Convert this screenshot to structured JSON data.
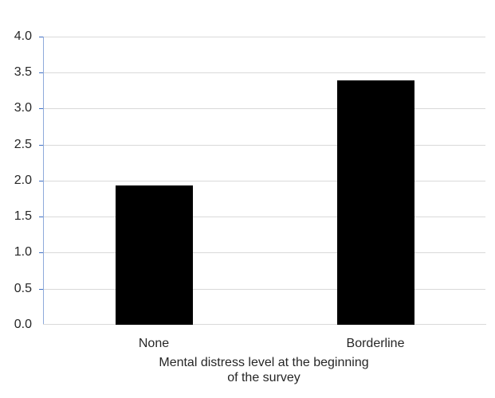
{
  "chart_data": {
    "type": "bar",
    "title": "",
    "categories": [
      "None",
      "Borderline"
    ],
    "values": [
      1.93,
      3.39
    ],
    "xlabel": "Mental distress level at the beginning of the survey",
    "xlabel_lines": [
      "Mental distress level at the beginning",
      "of the survey"
    ],
    "ylabel": "",
    "ylim": [
      0,
      4.0
    ],
    "yticks": [
      "4.0",
      "3.5",
      "3.0",
      "2.5",
      "2.0",
      "1.5",
      "1.0",
      "0.5",
      "0.0"
    ],
    "grid": true,
    "legend": null,
    "bar_color": "#000000",
    "axis_color": "#8eaadb",
    "grid_color": "#d9d9d9"
  }
}
